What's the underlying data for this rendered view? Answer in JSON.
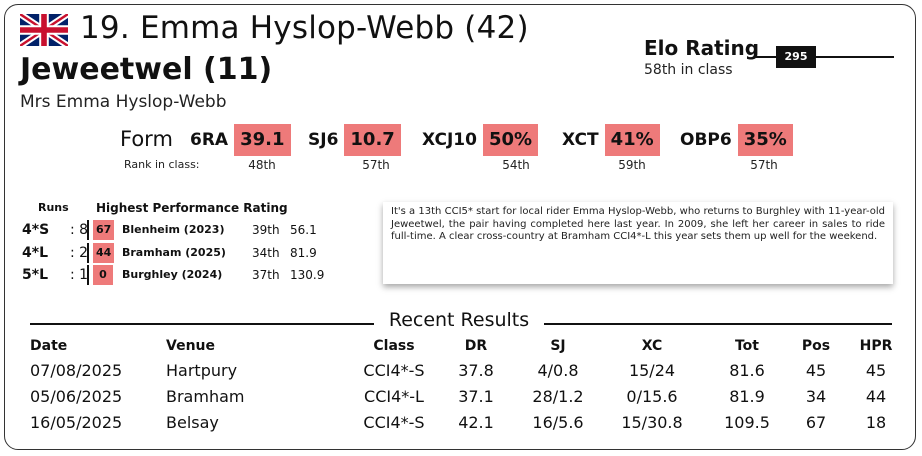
{
  "header": {
    "flag_icon": "uk-flag-icon",
    "rider": "19. Emma Hyslop-Webb (42)",
    "horse": "Jeweetwel (11)",
    "owner": "Mrs Emma Hyslop-Webb"
  },
  "elo": {
    "label": "Elo Rating",
    "rank_text": "58th in class",
    "value": "295"
  },
  "form": {
    "label": "Form",
    "rank_label": "Rank in class:",
    "accent_color": "#ee7a7a",
    "items": [
      {
        "code": "6RA",
        "value": "39.1",
        "rank": "48th"
      },
      {
        "code": "SJ6",
        "value": "10.7",
        "rank": "57th"
      },
      {
        "code": "XCJ10",
        "value": "50%",
        "rank": "54th"
      },
      {
        "code": "XCT",
        "value": "41%",
        "rank": "59th"
      },
      {
        "code": "OBP6",
        "value": "35%",
        "rank": "57th"
      }
    ]
  },
  "runs": {
    "runs_header": "Runs",
    "hpr_header": "Highest Performance Rating",
    "rows": [
      {
        "level": "4*S",
        "count": ": 8",
        "hpr": "67",
        "venue": "Blenheim (2023)",
        "rank": "39th",
        "score": "56.1"
      },
      {
        "level": "4*L",
        "count": ": 2",
        "hpr": "44",
        "venue": "Bramham (2025)",
        "rank": "34th",
        "score": "81.9"
      },
      {
        "level": "5*L",
        "count": ": 1",
        "hpr": "0",
        "venue": "Burghley (2024)",
        "rank": "37th",
        "score": "130.9"
      }
    ]
  },
  "note": "It's a 13th CCI5* start for local rider Emma Hyslop-Webb, who returns to Burghley with 11-year-old Jeweetwel, the pair having completed here last year. In 2009, she left her career in sales to ride full-time. A clear cross-country at Bramham CCI4*-L this year sets them up well for the weekend.",
  "results": {
    "title": "Recent Results",
    "columns": {
      "date": "Date",
      "venue": "Venue",
      "class": "Class",
      "dr": "DR",
      "sj": "SJ",
      "xc": "XC",
      "tot": "Tot",
      "pos": "Pos",
      "hpr": "HPR"
    },
    "rows": [
      {
        "date": "07/08/2025",
        "venue": "Hartpury",
        "class": "CCI4*-S",
        "dr": "37.8",
        "sj": "4/0.8",
        "xc": "15/24",
        "tot": "81.6",
        "pos": "45",
        "hpr": "45"
      },
      {
        "date": "05/06/2025",
        "venue": "Bramham",
        "class": "CCI4*-L",
        "dr": "37.1",
        "sj": "28/1.2",
        "xc": "0/15.6",
        "tot": "81.9",
        "pos": "34",
        "hpr": "44"
      },
      {
        "date": "16/05/2025",
        "venue": "Belsay",
        "class": "CCI4*-S",
        "dr": "42.1",
        "sj": "16/5.6",
        "xc": "15/30.8",
        "tot": "109.5",
        "pos": "67",
        "hpr": "18"
      }
    ]
  }
}
